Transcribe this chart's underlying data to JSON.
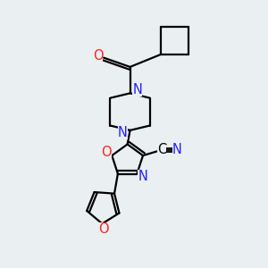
{
  "background_color": "#eaeff1",
  "bond_color": "#000000",
  "bond_width": 1.6,
  "atom_colors": {
    "N": "#2020ff",
    "O": "#ff2020",
    "C": "#000000"
  },
  "font_size": 10.5
}
